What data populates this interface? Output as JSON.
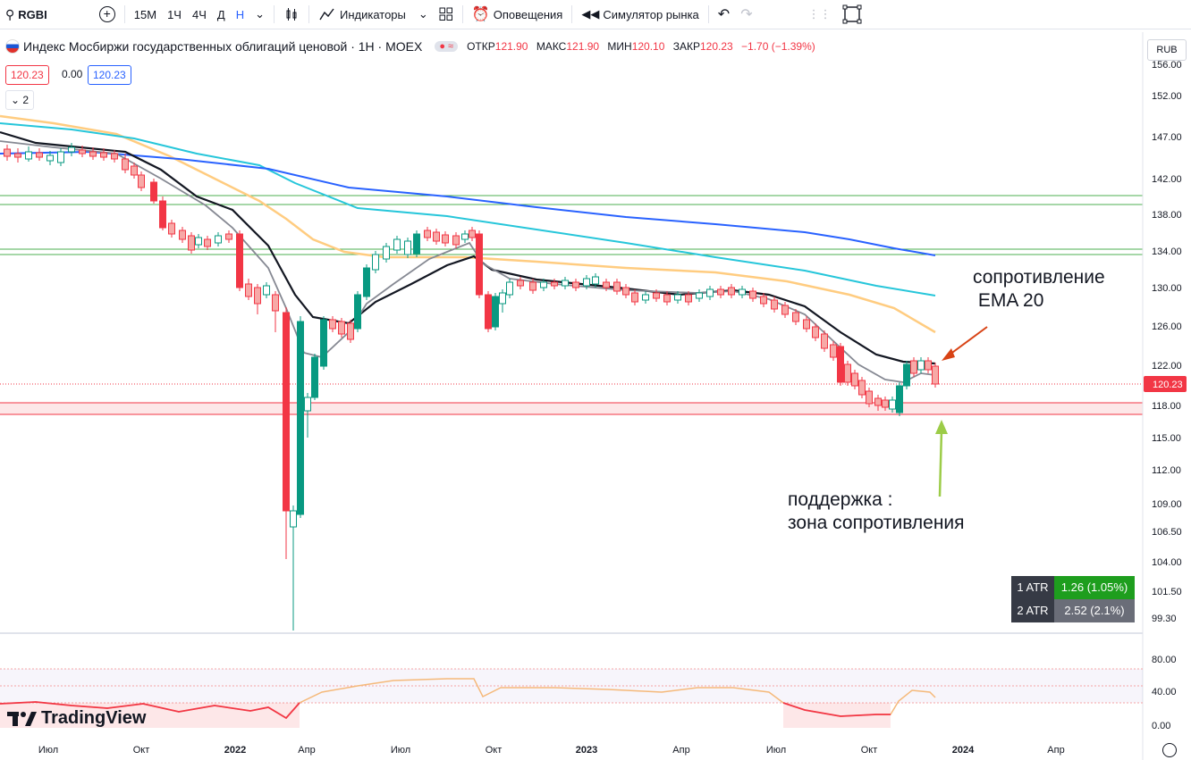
{
  "toolbar": {
    "symbol": "RGBI",
    "intervals": [
      "15М",
      "1Ч",
      "4Ч",
      "Д",
      "Н"
    ],
    "active_interval": "Н",
    "indicators_label": "Индикаторы",
    "alerts_label": "Оповещения",
    "replay_label": "Симулятор рынка"
  },
  "legend": {
    "title": "Индекс Мосбиржи государственных облигаций ценовой · 1Н · MOEX",
    "open_label": "ОТКР",
    "open": "121.90",
    "high_label": "МАКС",
    "high": "121.90",
    "low_label": "МИН",
    "low": "120.10",
    "close_label": "ЗАКР",
    "close": "120.23",
    "change": "−1.70 (−1.39%)",
    "bid": "120.23",
    "spread": "0.00",
    "ask": "120.23",
    "collapse_count": "2"
  },
  "currency": "RUB",
  "price_axis": {
    "labels": [
      "152.00",
      "147.00",
      "142.00",
      "138.00",
      "134.00",
      "130.00",
      "126.00",
      "122.00",
      "118.00",
      "115.00",
      "112.00",
      "109.00",
      "106.50",
      "104.00",
      "101.50",
      "99.30"
    ],
    "top_cut": "156.00",
    "last_price": "120.23"
  },
  "osc_axis": {
    "labels": [
      "80.00",
      "40.00",
      "0.00"
    ]
  },
  "time_axis": {
    "labels": [
      "Июл",
      "Окт",
      "2022",
      "Апр",
      "Июл",
      "Окт",
      "2023",
      "Апр",
      "Июл",
      "Окт",
      "2024",
      "Апр"
    ],
    "bold": [
      "2022",
      "2023",
      "2024"
    ]
  },
  "annotations": {
    "resistance": [
      "сопротивление",
      " EMA 20"
    ],
    "support": [
      "поддержка :",
      "зона сопротивления"
    ]
  },
  "atr": [
    {
      "name": "1 ATR",
      "value": "1.26 (1.05%)",
      "color": "#1e9e1e"
    },
    {
      "name": "2 ATR",
      "value": "2.52 (2.1%)",
      "color": "#6a6d78"
    }
  ],
  "brand": "TradingView",
  "colors": {
    "up": "#089981",
    "down": "#f23645",
    "ema_black": "#131722",
    "ema_gray": "#868993",
    "ema_orange": "#ffcc80",
    "ema_cyan": "#26c6da",
    "ema_blue": "#2962ff",
    "level_green": "#4caf50",
    "level_red": "#f23645",
    "rsi": "#f5b97a"
  }
}
